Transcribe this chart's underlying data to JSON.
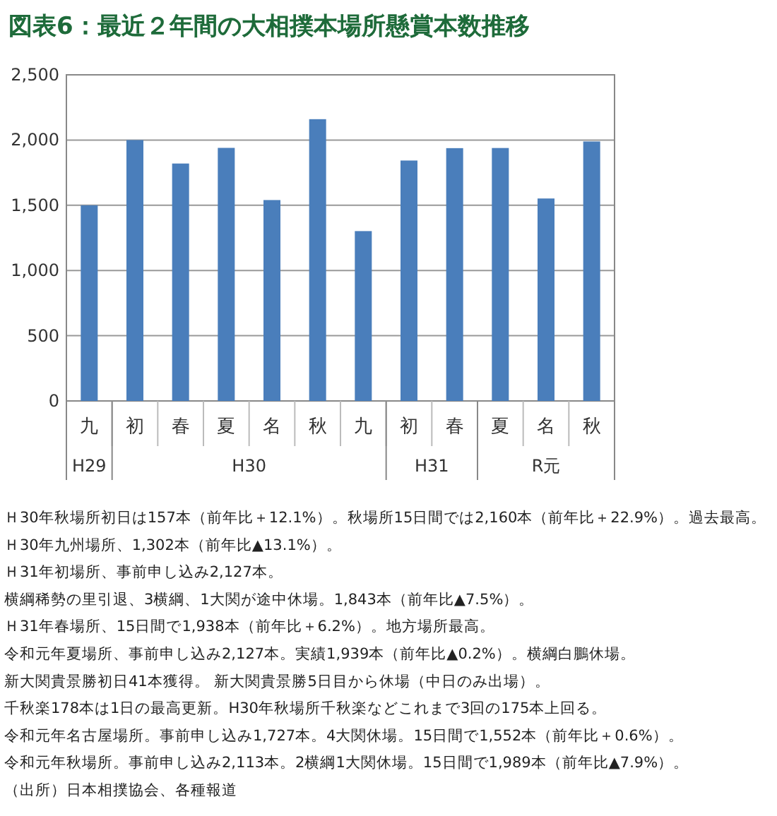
{
  "chart_data": {
    "type": "bar",
    "title": "図表6：最近２年間の大相撲本場所懸賞本数推移",
    "categories": [
      "九",
      "初",
      "春",
      "夏",
      "名",
      "秋",
      "九",
      "初",
      "春",
      "夏",
      "名",
      "秋"
    ],
    "values": [
      1500,
      2000,
      1820,
      1940,
      1540,
      2160,
      1302,
      1843,
      1938,
      1939,
      1552,
      1989
    ],
    "color": "#4a7ebb",
    "ylim": [
      0,
      2500
    ],
    "yticks": [
      {
        "value": 0,
        "label": "0"
      },
      {
        "value": 500,
        "label": "500"
      },
      {
        "value": 1000,
        "label": "1,000"
      },
      {
        "value": 1500,
        "label": "1,500"
      },
      {
        "value": 2000,
        "label": "2,000"
      },
      {
        "value": 2500,
        "label": "2,500"
      }
    ],
    "grid": "y",
    "annotations": [
      "H29",
      "H30",
      "H31",
      "R元",
      {
        "text": "Ｈ30年秋場所初日は157本（前年比＋12.1%）。秋場所15日間では2,160本（前年比＋22.9%）。過去最高。"
      },
      {
        "text": "Ｈ30年九州場所、1,302本（前年比▲13.1%）。"
      },
      {
        "text": "Ｈ31年初場所、事前申し込み2,127本。"
      },
      {
        "text": "横綱稀勢の里引退、3横綱、1大関が途中休場。1,843本（前年比▲7.5%）。"
      },
      {
        "text": "Ｈ31年春場所、15日間で1,938本（前年比＋6.2%）。地方場所最高。"
      },
      {
        "text": "令和元年夏場所、事前申し込み2,127本。実績1,939本（前年比▲0.2%）。横綱白鵬休場。"
      },
      {
        "text": "新大関貴景勝初日41本獲得。 新大関貴景勝5日目から休場（中日のみ出場）。"
      },
      {
        "text": "千秋楽178本は1日の最高更新。H30年秋場所千秋楽などこれまで3回の175本上回る。"
      },
      {
        "text": "令和元年名古屋場所。事前申し込み1,727本。4大関休場。15日間で1,552本（前年比＋0.6%）。"
      },
      {
        "text": "令和元年秋場所。事前申し込み2,113本。2横綱1大関休場。15日間で1,989本（前年比▲7.9%）。"
      },
      {
        "text": "（出所）日本相撲協会、各種報道"
      }
    ]
  }
}
